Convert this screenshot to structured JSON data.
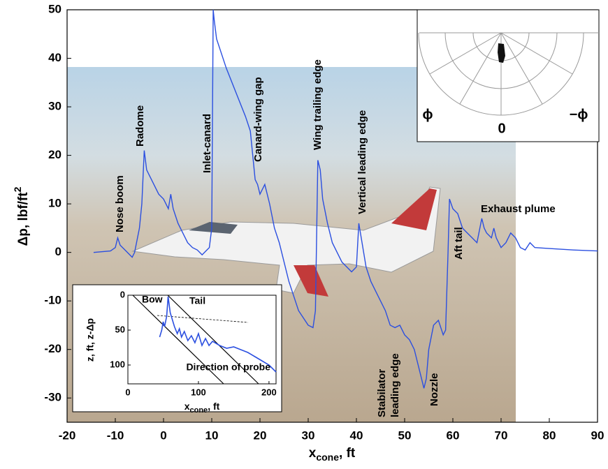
{
  "chart_data": {
    "type": "line",
    "x_label": {
      "text": "x",
      "sub": "cone",
      "rest": ", ft"
    },
    "y_label": {
      "text": "Δp, lbf/ft",
      "sup": "2"
    },
    "xlim": [
      -20,
      90
    ],
    "ylim": [
      -35,
      50
    ],
    "xticks": [
      -20,
      -10,
      0,
      10,
      20,
      30,
      40,
      50,
      60,
      70,
      80,
      90
    ],
    "yticks": [
      -30,
      -20,
      -10,
      0,
      10,
      20,
      30,
      40,
      50
    ],
    "series": [
      {
        "color": "#2b4fe0",
        "x": [
          -14.5,
          -11,
          -10,
          -9.5,
          -9,
          -8,
          -7,
          -6.5,
          -6,
          -5,
          -4.5,
          -4,
          -3.5,
          -3,
          -2,
          -1,
          0,
          0.5,
          1,
          1.5,
          2,
          3,
          4,
          5,
          6,
          7,
          8,
          9,
          9.5,
          10,
          10.3,
          10.5,
          11,
          12,
          13,
          15,
          17,
          18,
          19,
          19.5,
          20,
          21,
          22,
          23,
          24,
          25,
          26,
          28,
          30,
          31,
          31.5,
          32,
          32.5,
          33,
          34,
          35,
          36,
          37,
          38,
          39,
          40,
          40.5,
          41,
          42,
          43,
          44,
          45,
          46,
          47,
          48,
          49,
          50,
          51,
          52,
          53,
          54,
          54.5,
          55,
          56,
          57,
          58,
          58.5,
          59,
          59.3,
          60,
          61,
          62,
          63,
          64,
          65,
          66,
          66.5,
          67,
          68,
          68.5,
          69,
          70,
          71,
          72,
          73,
          74,
          75,
          76,
          77,
          80,
          85,
          90
        ],
        "values": [
          0,
          0.3,
          1,
          3,
          1.5,
          0.5,
          -0.5,
          -1,
          0,
          5,
          10,
          21,
          17,
          16,
          14,
          12,
          11,
          10,
          9,
          12,
          9,
          6,
          4,
          2,
          1,
          0.5,
          -0.5,
          0.5,
          1,
          5,
          50,
          48,
          44,
          41,
          38,
          33,
          28,
          25,
          15,
          14,
          12,
          14,
          10,
          5,
          2,
          -2,
          -6,
          -12,
          -15,
          -15.5,
          -12,
          19,
          17,
          11,
          6,
          2,
          0,
          -2,
          -3,
          -4,
          -3,
          6,
          3,
          -3,
          -6,
          -8,
          -10,
          -12,
          -15,
          -15.5,
          -15,
          -17,
          -18,
          -20,
          -24,
          -28,
          -26,
          -20,
          -15,
          -14,
          -17,
          -16,
          0,
          11,
          9,
          8,
          5,
          4,
          3,
          2,
          7,
          5,
          4,
          3,
          5,
          3,
          1,
          2,
          4,
          3,
          1,
          0.5,
          2,
          1,
          0.8,
          0.5,
          0.3
        ]
      }
    ],
    "annotations": [
      "Nose boom",
      "Radome",
      "Inlet-canard",
      "Canard-wing gap",
      "Wing trailing edge",
      "Vertical leading edge",
      "Aft tail",
      "Stabilator",
      "leading edge",
      "Nozzle",
      "Exhaust plume"
    ],
    "polar_inset": {
      "labels": [
        "ϕ",
        "0",
        "−ϕ"
      ]
    },
    "inset": {
      "y_label": "z, ft, z-Δp",
      "x_label": {
        "text": "x",
        "sub": "cone",
        "rest": ", ft"
      },
      "xlim": [
        0,
        210
      ],
      "ylim": [
        0,
        127
      ],
      "xticks": [
        0,
        100,
        200
      ],
      "yticks": [
        0,
        50,
        100
      ],
      "annotations": [
        "Bow",
        "Tail",
        "Direction of probe"
      ],
      "series": [
        {
          "color": "#2b4fe0",
          "x": [
            45,
            48,
            50,
            52,
            55,
            57,
            60,
            63,
            66,
            70,
            73,
            76,
            80,
            85,
            90,
            95,
            100,
            105,
            110,
            115,
            120,
            130,
            140,
            150,
            160,
            170,
            180,
            190,
            200,
            210
          ],
          "values": [
            60,
            50,
            38,
            45,
            30,
            2,
            25,
            35,
            45,
            55,
            48,
            60,
            52,
            65,
            58,
            68,
            55,
            72,
            62,
            72,
            66,
            72,
            76,
            74,
            78,
            82,
            88,
            94,
            100,
            110
          ]
        }
      ]
    }
  }
}
